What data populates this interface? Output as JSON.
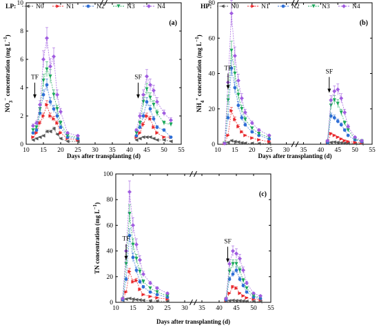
{
  "x_title": "Days after transplanting (d)",
  "legend_titles": [
    "LP:",
    "HP:"
  ],
  "series_names": [
    "N0",
    "N1",
    "N2",
    "N3",
    "N4"
  ],
  "series_colors": [
    "#555555",
    "#e8262a",
    "#2f6fd6",
    "#1aa85a",
    "#a05ce0"
  ],
  "arrow_labels": [
    "TF",
    "SF"
  ],
  "chart_data": [
    {
      "type": "line",
      "panel": "(a)",
      "ylabel": "NO3⁻ concentration (mg L⁻¹)",
      "ylabel_parts": {
        "main": "NO",
        "sub": "3",
        "sup1": "−",
        "rest": " concentration (mg L",
        "sup2": "−1",
        "end": ")"
      },
      "xlim": [
        10,
        55
      ],
      "ylim": [
        0,
        10
      ],
      "xticks": [
        10,
        15,
        20,
        25,
        30,
        35,
        40,
        45,
        50,
        55
      ],
      "yticks": [
        0,
        2,
        4,
        6,
        8,
        10
      ],
      "y_break_at_x": 32.5,
      "annotations": [
        {
          "text": "TF",
          "x": 12.5,
          "y": 4.6
        },
        {
          "text": "SF",
          "x": 42.5,
          "y": 4.6
        }
      ],
      "x": [
        12,
        13,
        14,
        15,
        16,
        17,
        18,
        19,
        20,
        22,
        25,
        42,
        43,
        44,
        45,
        46,
        47,
        48,
        50,
        52
      ],
      "series": [
        {
          "name": "N0",
          "values": [
            0.3,
            0.4,
            0.5,
            0.6,
            0.9,
            0.9,
            1.1,
            0.7,
            0.4,
            0.2,
            0.2,
            0.3,
            0.4,
            0.5,
            0.5,
            0.5,
            0.4,
            0.3,
            0.3,
            0.2
          ]
        },
        {
          "name": "N1",
          "values": [
            0.5,
            0.8,
            1.5,
            2.0,
            2.8,
            2.0,
            1.8,
            1.5,
            0.8,
            0.4,
            0.3,
            0.5,
            0.8,
            1.4,
            2.0,
            1.8,
            1.2,
            0.8,
            0.5,
            0.5
          ]
        },
        {
          "name": "N2",
          "values": [
            0.8,
            1.0,
            2.2,
            3.5,
            4.2,
            3.0,
            2.5,
            2.0,
            1.2,
            0.5,
            0.4,
            0.6,
            1.2,
            2.0,
            3.0,
            2.5,
            1.8,
            1.2,
            1.0,
            0.5
          ]
        },
        {
          "name": "N3",
          "values": [
            1.0,
            1.2,
            2.5,
            4.5,
            5.3,
            4.8,
            3.5,
            2.5,
            1.5,
            0.6,
            0.5,
            0.8,
            1.5,
            3.0,
            3.9,
            3.3,
            2.8,
            2.2,
            1.5,
            1.4
          ]
        },
        {
          "name": "N4",
          "values": [
            1.3,
            1.5,
            2.8,
            6.0,
            7.5,
            5.5,
            6.2,
            3.5,
            2.3,
            0.8,
            0.6,
            1.0,
            2.0,
            3.5,
            4.8,
            4.2,
            3.8,
            3.0,
            2.2,
            1.7
          ]
        }
      ]
    },
    {
      "type": "line",
      "panel": "(b)",
      "ylabel": "NH4⁺ concentration (mg L⁻¹)",
      "ylabel_parts": {
        "main": "NH",
        "sub": "4",
        "sup1": "+",
        "rest": " concentration (mg L",
        "sup2": "−1",
        "end": ")"
      },
      "xlim": [
        10,
        55
      ],
      "ylim": [
        0,
        80
      ],
      "xticks": [
        10,
        15,
        20,
        25,
        30,
        35,
        40,
        45,
        50,
        55
      ],
      "yticks": [
        0,
        20,
        40,
        60,
        80
      ],
      "y_break_at_x": 32.5,
      "x_break_at_x": 32.5,
      "annotations": [
        {
          "text": "TF",
          "x": 13,
          "y": 42
        },
        {
          "text": "SF",
          "x": 42.5,
          "y": 40
        }
      ],
      "x": [
        12,
        13,
        14,
        15,
        16,
        17,
        18,
        20,
        22,
        25,
        42,
        43,
        44,
        45,
        46,
        47,
        48,
        50,
        52
      ],
      "series": [
        {
          "name": "N0",
          "values": [
            0.5,
            1.0,
            2.0,
            1.5,
            1.2,
            0.8,
            0.6,
            0.5,
            0.4,
            0.3,
            0.5,
            1.0,
            1.2,
            1.0,
            0.8,
            0.6,
            0.5,
            0.4,
            0.3
          ]
        },
        {
          "name": "N1",
          "values": [
            0.5,
            5.0,
            19.0,
            14.0,
            10.0,
            7.0,
            5.0,
            3.5,
            2.5,
            1.5,
            1.0,
            6.0,
            5.0,
            4.0,
            3.0,
            2.0,
            1.5,
            1.0,
            0.8
          ]
        },
        {
          "name": "N2",
          "values": [
            0.5,
            15.0,
            43.0,
            32.0,
            22.0,
            15.0,
            11.0,
            7.0,
            5.0,
            3.0,
            1.0,
            16.0,
            15.0,
            13.0,
            11.0,
            8.0,
            5.0,
            2.5,
            1.5
          ]
        },
        {
          "name": "N3",
          "values": [
            0.5,
            25.0,
            53.0,
            40.0,
            28.0,
            20.0,
            14.0,
            9.0,
            6.0,
            4.0,
            1.5,
            22.0,
            25.0,
            23.0,
            18.0,
            12.0,
            8.0,
            3.0,
            1.8
          ]
        },
        {
          "name": "N4",
          "values": [
            0.5,
            35.0,
            74.0,
            50.0,
            36.0,
            26.0,
            18.0,
            12.0,
            8.0,
            5.0,
            2.0,
            25.0,
            30.0,
            31.0,
            26.0,
            18.0,
            10.0,
            4.0,
            2.0
          ]
        }
      ]
    },
    {
      "type": "line",
      "panel": "(c)",
      "ylabel": "TN  concentration (mg L⁻¹)",
      "ylabel_parts": {
        "main": "TN",
        "sub": "",
        "sup1": "",
        "rest": "  concentration (mg L",
        "sup2": "−1",
        "end": ")"
      },
      "xlim": [
        10,
        55
      ],
      "ylim": [
        0,
        100
      ],
      "xticks": [
        10,
        15,
        20,
        25,
        30,
        35,
        40,
        45,
        50,
        55
      ],
      "yticks": [
        0,
        20,
        40,
        60,
        80,
        100
      ],
      "y_break_at_x": 32.5,
      "x_break_at_x": 32.5,
      "annotations": [
        {
          "text": "TF",
          "x": 13,
          "y": 48
        },
        {
          "text": "SF",
          "x": 42.5,
          "y": 46
        }
      ],
      "x": [
        12,
        13,
        14,
        15,
        16,
        17,
        18,
        20,
        22,
        25,
        42,
        43,
        44,
        45,
        46,
        47,
        48,
        50,
        52
      ],
      "series": [
        {
          "name": "N0",
          "values": [
            1.5,
            2.5,
            3.0,
            2.5,
            2.0,
            1.8,
            1.5,
            1.2,
            1.0,
            0.8,
            0.8,
            1.2,
            1.5,
            1.3,
            1.2,
            1.0,
            0.8,
            0.6,
            0.5
          ]
        },
        {
          "name": "N1",
          "values": [
            2.0,
            8.0,
            24.0,
            16.0,
            17.0,
            10.0,
            6.0,
            4.5,
            3.5,
            2.5,
            1.5,
            7.0,
            12.0,
            11.0,
            7.0,
            5.0,
            3.5,
            2.5,
            2.0
          ]
        },
        {
          "name": "N2",
          "values": [
            2.0,
            18.0,
            52.0,
            35.0,
            25.0,
            16.0,
            12.0,
            8.0,
            6.0,
            4.0,
            2.0,
            18.0,
            22.0,
            25.0,
            18.0,
            13.0,
            8.0,
            4.0,
            3.0
          ]
        },
        {
          "name": "N3",
          "values": [
            2.5,
            30.0,
            69.0,
            45.0,
            34.0,
            24.0,
            16.0,
            11.0,
            8.0,
            5.0,
            2.5,
            24.0,
            30.0,
            30.0,
            25.0,
            17.0,
            11.0,
            5.0,
            4.0
          ]
        },
        {
          "name": "N4",
          "values": [
            3.0,
            40.0,
            86.0,
            60.0,
            45.0,
            33.0,
            22.0,
            15.0,
            11.0,
            7.0,
            3.0,
            30.0,
            40.0,
            38.0,
            34.0,
            25.0,
            15.0,
            7.0,
            5.0
          ]
        }
      ]
    }
  ]
}
